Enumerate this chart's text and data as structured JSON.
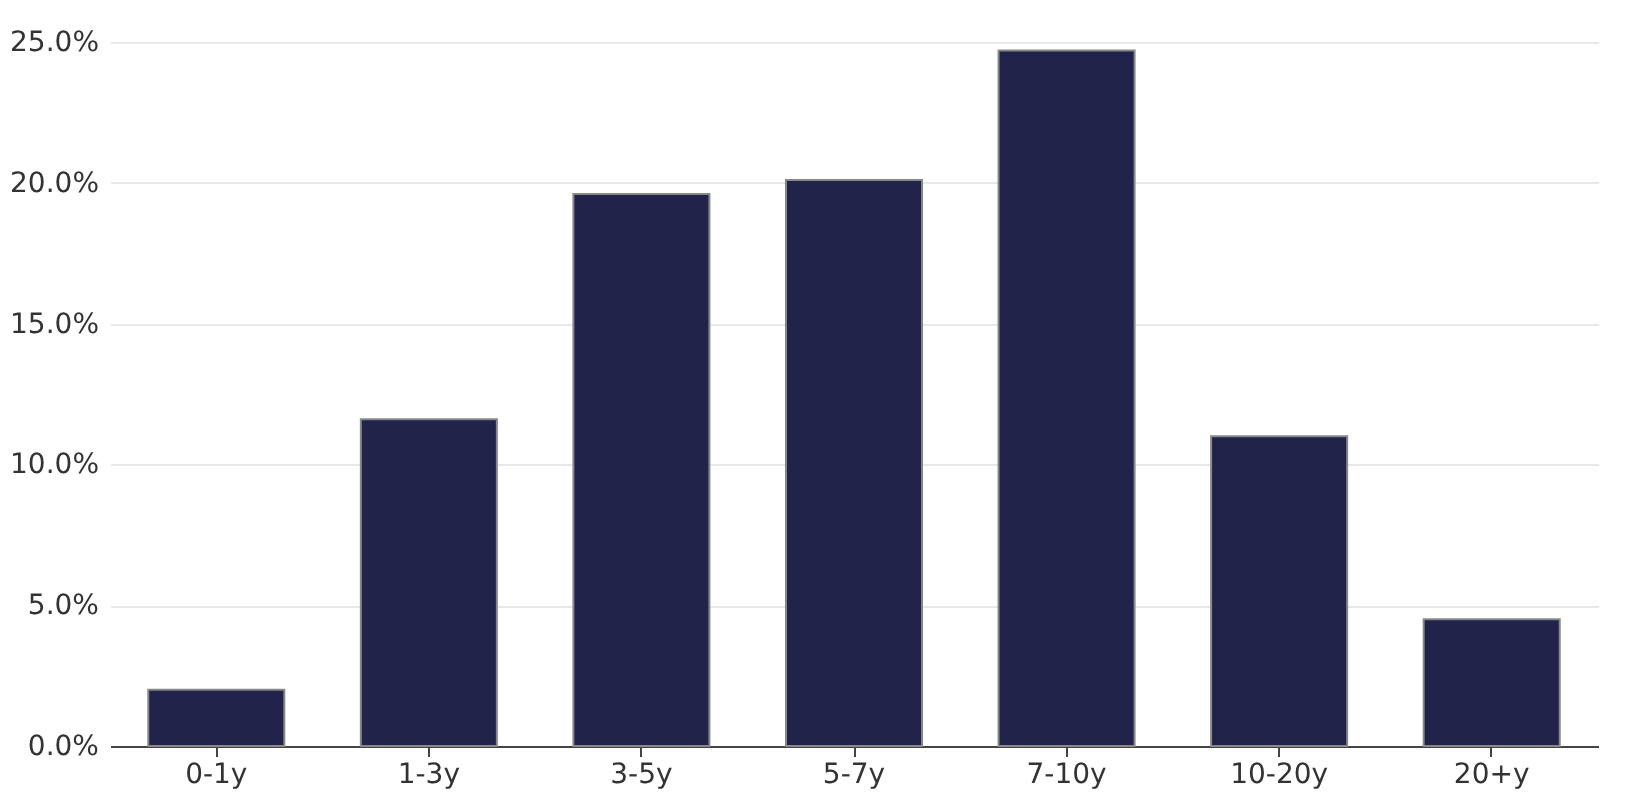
{
  "chart_data": {
    "type": "bar",
    "categories": [
      "0-1y",
      "1-3y",
      "3-5y",
      "5-7y",
      "7-10y",
      "10-20y",
      "20+y"
    ],
    "values": [
      2.0,
      11.6,
      19.6,
      20.1,
      24.7,
      11.0,
      4.5
    ],
    "color": "#22234a",
    "ylim": [
      0,
      25
    ],
    "yticks": [
      {
        "value": 0,
        "label": "0.0%"
      },
      {
        "value": 5,
        "label": "5.0%"
      },
      {
        "value": 10,
        "label": "10.0%"
      },
      {
        "value": 15,
        "label": "15.0%"
      },
      {
        "value": 20,
        "label": "20.0%"
      },
      {
        "value": 25,
        "label": "25.0%"
      }
    ],
    "grid": "y"
  }
}
